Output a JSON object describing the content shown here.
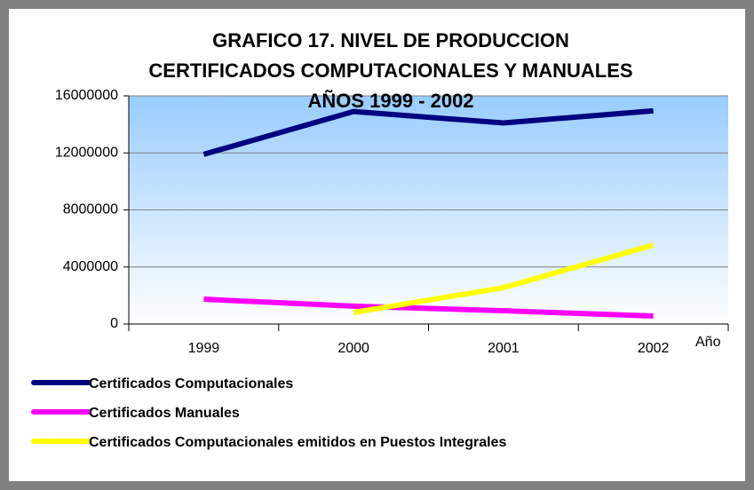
{
  "chart_data": {
    "type": "line",
    "title": [
      "GRAFICO 17. NIVEL DE PRODUCCION",
      "CERTIFICADOS COMPUTACIONALES Y MANUALES",
      "AÑOS 1999 - 2002"
    ],
    "x_label": "Año",
    "categories": [
      "1999",
      "2000",
      "2001",
      "2002"
    ],
    "series": [
      {
        "name": "Certificados Computacionales",
        "color": "#000080",
        "values": [
          11900000,
          14900000,
          14100000,
          14950000
        ]
      },
      {
        "name": "Certificados Manuales",
        "color": "#ff00ff",
        "values": [
          1740000,
          1250000,
          930000,
          560000
        ]
      },
      {
        "name": "Certificados Computacionales emitidos en Puestos Integrales",
        "color": "#ffff00",
        "values": [
          null,
          810000,
          2550000,
          5540000
        ]
      }
    ],
    "ylim": [
      0,
      16000000
    ],
    "yticks": [
      0,
      4000000,
      8000000,
      12000000,
      16000000
    ],
    "grid": true,
    "legend": "bottom-left"
  }
}
